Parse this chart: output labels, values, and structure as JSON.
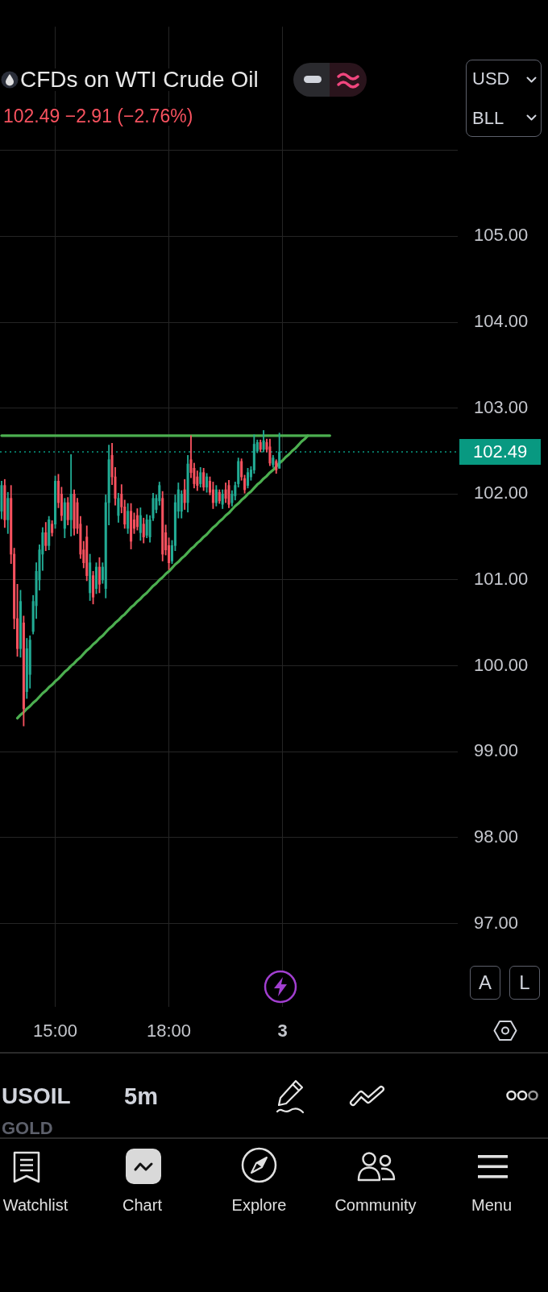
{
  "chart_data": {
    "type": "candlestick",
    "title": "CFDs on WTI Crude Oil",
    "subtitle": "102.49 −2.91 (−2.76%)",
    "annotations": [
      "USD",
      "BLL",
      "A",
      "L",
      "USOIL",
      "GOLD",
      "5m",
      "Watchlist",
      "Chart",
      "Explore",
      "Community",
      "Menu"
    ],
    "categories": [
      null,
      null,
      null,
      null,
      null,
      null,
      null,
      null,
      null,
      null,
      null,
      null,
      null,
      null,
      null,
      null,
      null,
      "15:00",
      null,
      null,
      null,
      null,
      null,
      null,
      null,
      null,
      null,
      null,
      null,
      null,
      null,
      null,
      null,
      null,
      null,
      null,
      null,
      null,
      null,
      null,
      null,
      null,
      null,
      null,
      null,
      null,
      null,
      null,
      null,
      null,
      null,
      null,
      null,
      "18:00",
      null,
      null,
      null,
      null,
      null,
      null,
      null,
      null,
      null,
      null,
      null,
      null,
      null,
      null,
      null,
      null,
      null,
      null,
      null,
      null,
      null,
      null,
      null,
      null,
      null,
      null,
      null,
      null,
      null,
      null,
      null,
      null,
      null,
      null,
      null,
      "3",
      null,
      null,
      null,
      null,
      null,
      null,
      null,
      null,
      null,
      null,
      null,
      null,
      null,
      null,
      null,
      null,
      null,
      null,
      null,
      null,
      null,
      null,
      null,
      null,
      null,
      null,
      null,
      null,
      null,
      null,
      null,
      null,
      null,
      null,
      null,
      null,
      null,
      null,
      null,
      null,
      null,
      null,
      null,
      null,
      null,
      null,
      null,
      null,
      null,
      null,
      null,
      null,
      null,
      null,
      null
    ],
    "ohlc": [
      [
        101.8,
        102.15,
        101.71,
        102.1
      ],
      [
        102.1,
        102.17,
        101.61,
        101.7
      ],
      [
        101.7,
        102.02,
        101.54,
        101.95
      ],
      [
        101.95,
        102.1,
        101.19,
        101.3
      ],
      [
        101.3,
        101.37,
        100.43,
        100.55
      ],
      [
        100.55,
        100.95,
        100.11,
        100.2
      ],
      [
        100.2,
        100.88,
        100.1,
        100.75
      ],
      [
        100.5,
        100.58,
        99.3,
        99.5
      ],
      [
        99.7,
        100.32,
        99.62,
        100.2
      ],
      [
        99.9,
        100.35,
        99.74,
        100.3
      ],
      [
        100.4,
        100.82,
        100.37,
        100.75
      ],
      [
        100.7,
        101.2,
        100.55,
        101.1
      ],
      [
        101.0,
        101.41,
        100.88,
        101.35
      ],
      [
        101.3,
        101.61,
        101.11,
        101.55
      ],
      [
        101.55,
        101.67,
        101.34,
        101.4
      ],
      [
        101.4,
        101.74,
        101.35,
        101.7
      ],
      [
        101.65,
        101.69,
        101.51,
        101.55
      ],
      [
        101.65,
        102.21,
        101.6,
        102.15
      ],
      [
        102.15,
        102.23,
        101.84,
        101.9
      ],
      [
        102.0,
        102.08,
        101.69,
        101.75
      ],
      [
        101.6,
        101.95,
        101.49,
        101.9
      ],
      [
        101.9,
        101.96,
        101.64,
        101.7
      ],
      [
        101.7,
        102.46,
        101.51,
        102.0
      ],
      [
        102.0,
        102.05,
        101.52,
        101.6
      ],
      [
        101.9,
        101.95,
        101.54,
        101.6
      ],
      [
        101.65,
        101.74,
        101.25,
        101.3
      ],
      [
        101.35,
        101.45,
        101.14,
        101.2
      ],
      [
        101.5,
        101.63,
        100.99,
        101.05
      ],
      [
        100.85,
        101.3,
        100.76,
        101.2
      ],
      [
        101.05,
        101.1,
        100.72,
        100.8
      ],
      [
        100.9,
        101.2,
        100.84,
        101.15
      ],
      [
        101.15,
        101.26,
        100.85,
        100.95
      ],
      [
        101.0,
        101.2,
        100.96,
        101.15
      ],
      [
        100.9,
        101.99,
        100.79,
        101.9
      ],
      [
        101.9,
        102.57,
        101.64,
        102.4
      ],
      [
        102.45,
        102.59,
        102.11,
        102.2
      ],
      [
        102.2,
        102.31,
        101.87,
        101.95
      ],
      [
        101.75,
        102.01,
        101.67,
        101.95
      ],
      [
        102.0,
        102.11,
        101.78,
        101.85
      ],
      [
        101.85,
        101.93,
        101.6,
        101.65
      ],
      [
        101.6,
        101.89,
        101.54,
        101.8
      ],
      [
        101.8,
        101.89,
        101.36,
        101.45
      ],
      [
        101.7,
        101.78,
        101.54,
        101.6
      ],
      [
        101.75,
        101.83,
        101.58,
        101.62
      ],
      [
        101.55,
        101.84,
        101.46,
        101.75
      ],
      [
        101.65,
        101.72,
        101.43,
        101.5
      ],
      [
        101.52,
        101.76,
        101.49,
        101.7
      ],
      [
        101.5,
        101.75,
        101.44,
        101.7
      ],
      [
        101.72,
        102.01,
        101.69,
        101.95
      ],
      [
        101.82,
        101.99,
        101.78,
        101.95
      ],
      [
        101.92,
        102.14,
        101.87,
        102.1
      ],
      [
        101.95,
        102.03,
        101.22,
        101.3
      ],
      [
        101.55,
        101.64,
        101.29,
        101.35
      ],
      [
        101.4,
        101.49,
        101.12,
        101.2
      ],
      [
        101.22,
        101.46,
        101.19,
        101.4
      ],
      [
        101.4,
        101.99,
        101.34,
        101.9
      ],
      [
        101.8,
        102.13,
        101.72,
        102.05
      ],
      [
        101.8,
        102.04,
        101.72,
        102.0
      ],
      [
        102.05,
        102.17,
        101.82,
        101.9
      ],
      [
        101.9,
        102.45,
        101.79,
        102.35
      ],
      [
        102.4,
        102.68,
        102.19,
        102.25
      ],
      [
        102.3,
        102.36,
        102.07,
        102.12
      ],
      [
        102.2,
        102.27,
        102.04,
        102.1
      ],
      [
        102.12,
        102.31,
        102.08,
        102.25
      ],
      [
        102.25,
        102.3,
        102.04,
        102.08
      ],
      [
        102.08,
        102.24,
        102.02,
        102.2
      ],
      [
        102.15,
        102.2,
        101.99,
        102.02
      ],
      [
        102.05,
        102.14,
        101.83,
        101.9
      ],
      [
        101.9,
        102.1,
        101.86,
        102.05
      ],
      [
        102.02,
        102.05,
        101.89,
        101.92
      ],
      [
        101.88,
        102.05,
        101.83,
        102.0
      ],
      [
        102.05,
        102.13,
        101.9,
        101.95
      ],
      [
        102.1,
        102.16,
        101.84,
        101.88
      ],
      [
        101.9,
        102.04,
        101.86,
        102.0
      ],
      [
        101.98,
        102.14,
        101.93,
        102.1
      ],
      [
        102.12,
        102.42,
        102.08,
        102.38
      ],
      [
        102.38,
        102.41,
        102.16,
        102.2
      ],
      [
        102.18,
        102.22,
        102.01,
        102.05
      ],
      [
        102.1,
        102.3,
        102.07,
        102.25
      ],
      [
        102.2,
        102.32,
        102.16,
        102.28
      ],
      [
        102.28,
        102.69,
        102.24,
        102.58
      ],
      [
        102.5,
        102.63,
        102.48,
        102.6
      ],
      [
        102.6,
        102.63,
        102.49,
        102.52
      ],
      [
        102.52,
        102.74,
        102.49,
        102.62
      ],
      [
        102.6,
        102.64,
        102.49,
        102.52
      ],
      [
        102.55,
        102.64,
        102.33,
        102.36
      ],
      [
        102.34,
        102.45,
        102.31,
        102.42
      ],
      [
        102.38,
        102.4,
        102.24,
        102.28
      ],
      [
        102.3,
        102.71,
        102.3,
        102.49
      ],
      null,
      null,
      null,
      null,
      null,
      null,
      null,
      null,
      null,
      null,
      null,
      null,
      null,
      null,
      null,
      null,
      null,
      null,
      null,
      null,
      null,
      null,
      null,
      null,
      null,
      null,
      null,
      null,
      null,
      null,
      null,
      null,
      null,
      null,
      null,
      null,
      null,
      null,
      null,
      null,
      null,
      null,
      null,
      null,
      null,
      null,
      null,
      null,
      null,
      null,
      null,
      null,
      null,
      null,
      null,
      null
    ],
    "colors": [
      "#22ab94",
      "#f7525f",
      "#22ab94",
      "#f7525f",
      "#f7525f",
      "#f7525f",
      "#22ab94",
      "#f7525f",
      "#22ab94",
      "#22ab94",
      "#22ab94",
      "#22ab94",
      "#22ab94",
      "#22ab94",
      "#f7525f",
      "#22ab94",
      "#f7525f",
      "#22ab94",
      "#f7525f",
      "#f7525f",
      "#22ab94",
      "#f7525f",
      "#22ab94",
      "#f7525f",
      "#f7525f",
      "#f7525f",
      "#f7525f",
      "#f7525f",
      "#22ab94",
      "#f7525f",
      "#22ab94",
      "#f7525f",
      "#22ab94",
      "#22ab94",
      "#22ab94",
      "#f7525f",
      "#f7525f",
      "#22ab94",
      "#f7525f",
      "#f7525f",
      "#22ab94",
      "#f7525f",
      "#f7525f",
      "#f7525f",
      "#22ab94",
      "#f7525f",
      "#22ab94",
      "#22ab94",
      "#22ab94",
      "#22ab94",
      "#22ab94",
      "#f7525f",
      "#f7525f",
      "#f7525f",
      "#22ab94",
      "#22ab94",
      "#22ab94",
      "#22ab94",
      "#f7525f",
      "#22ab94",
      "#f7525f",
      "#f7525f",
      "#f7525f",
      "#22ab94",
      "#f7525f",
      "#22ab94",
      "#f7525f",
      "#f7525f",
      "#22ab94",
      "#f7525f",
      "#22ab94",
      "#f7525f",
      "#f7525f",
      "#22ab94",
      "#22ab94",
      "#22ab94",
      "#f7525f",
      "#f7525f",
      "#22ab94",
      "#22ab94",
      "#22ab94",
      "#22ab94",
      "#f7525f",
      "#22ab94",
      "#f7525f",
      "#f7525f",
      "#22ab94",
      "#f7525f",
      "#22ab94",
      null,
      null,
      null,
      null,
      null,
      null,
      null,
      null,
      null,
      null,
      null,
      null,
      null,
      null,
      null,
      null,
      null,
      null,
      null,
      null,
      null,
      null,
      null,
      null,
      null,
      null,
      null,
      null,
      null,
      null,
      null,
      null,
      null,
      null,
      null,
      null,
      null,
      null,
      null,
      null,
      null,
      null,
      null,
      null,
      null,
      null,
      null,
      null,
      null,
      null,
      null,
      null,
      null,
      null,
      null,
      null
    ],
    "series": [
      {
        "type": "line",
        "color": "#4caf50",
        "values": [
          102.68,
          102.68,
          102.68,
          102.68,
          102.68,
          102.68,
          102.68,
          102.68,
          102.68,
          102.68,
          102.68,
          102.68,
          102.68,
          102.68,
          102.68,
          102.68,
          102.68,
          102.68,
          102.68,
          102.68,
          102.68,
          102.68,
          102.68,
          102.68,
          102.68,
          102.68,
          102.68,
          102.68,
          102.68,
          102.68,
          102.68,
          102.68,
          102.68,
          102.68,
          102.68,
          102.68,
          102.68,
          102.68,
          102.68,
          102.68,
          102.68,
          102.68,
          102.68,
          102.68,
          102.68,
          102.68,
          102.68,
          102.68,
          102.68,
          102.68,
          102.68,
          102.68,
          102.68,
          102.68,
          102.68,
          102.68,
          102.68,
          102.68,
          102.68,
          102.68,
          102.68,
          102.68,
          102.68,
          102.68,
          102.68,
          102.68,
          102.68,
          102.68,
          102.68,
          102.68,
          102.68,
          102.68,
          102.68,
          102.68,
          102.68,
          102.68,
          102.68,
          102.68,
          102.68,
          102.68,
          102.68,
          102.68,
          102.68,
          102.68,
          102.68,
          102.68,
          102.68,
          102.68,
          102.68,
          102.68,
          102.68,
          102.68,
          102.68,
          102.68,
          102.68,
          102.68,
          102.68,
          102.68,
          102.68,
          102.68,
          102.68,
          102.68,
          102.68,
          102.68,
          102.68,
          null,
          null,
          null,
          null,
          null,
          null,
          null,
          null,
          null,
          null,
          null,
          null,
          null,
          null,
          null,
          null,
          null,
          null,
          null,
          null,
          null,
          null,
          null,
          null,
          null,
          null,
          null,
          null,
          null,
          null,
          null,
          null,
          null,
          null,
          null,
          null,
          null,
          null,
          null,
          null
        ]
      },
      {
        "type": "line",
        "color": "#4caf50",
        "values": [
          null,
          null,
          null,
          null,
          null,
          99.39,
          99.43,
          99.46,
          99.5,
          99.53,
          99.57,
          99.6,
          99.64,
          99.68,
          99.71,
          99.75,
          99.78,
          99.82,
          99.85,
          99.89,
          99.93,
          99.96,
          100.0,
          100.03,
          100.07,
          100.1,
          100.14,
          100.18,
          100.21,
          100.25,
          100.28,
          100.32,
          100.35,
          100.39,
          100.43,
          100.46,
          100.5,
          100.53,
          100.57,
          100.6,
          100.64,
          100.68,
          100.71,
          100.75,
          100.78,
          100.82,
          100.85,
          100.89,
          100.93,
          100.96,
          101.0,
          101.03,
          101.07,
          101.1,
          101.14,
          101.18,
          101.21,
          101.25,
          101.28,
          101.32,
          101.36,
          101.39,
          101.43,
          101.46,
          101.5,
          101.53,
          101.57,
          101.61,
          101.64,
          101.68,
          101.71,
          101.75,
          101.78,
          101.82,
          101.86,
          101.89,
          101.93,
          101.96,
          102.0,
          102.03,
          102.07,
          102.11,
          102.14,
          102.18,
          102.21,
          102.25,
          102.28,
          102.32,
          102.36,
          102.39,
          102.43,
          102.46,
          102.5,
          102.53,
          102.57,
          102.61,
          102.64,
          102.68,
          null,
          null,
          null,
          null,
          null,
          null,
          null,
          null,
          null,
          null,
          null,
          null,
          null,
          null,
          null,
          null,
          null,
          null,
          null,
          null,
          null,
          null,
          null,
          null,
          null,
          null,
          null,
          null,
          null,
          null,
          null,
          null,
          null,
          null,
          null,
          null,
          null,
          null,
          null,
          null,
          null,
          null,
          null,
          null,
          null,
          null,
          null
        ]
      }
    ],
    "ylim": [
      96.03,
      107.44
    ],
    "yticks": [
      {
        "value": 97,
        "label": "97.00"
      },
      {
        "value": 98,
        "label": "98.00"
      },
      {
        "value": 99,
        "label": "99.00"
      },
      {
        "value": 100,
        "label": "100.00"
      },
      {
        "value": 101,
        "label": "101.00"
      },
      {
        "value": 102,
        "label": "102.00"
      },
      {
        "value": 103,
        "label": "103.00"
      },
      {
        "value": 104,
        "label": "104.00"
      },
      {
        "value": 105,
        "label": "105.00"
      },
      {
        "value": 106,
        "label": null
      }
    ],
    "grid": true,
    "ref_lines": [
      {
        "axis": "y",
        "value": 102.49,
        "label": "102.49",
        "color": "#089981",
        "line_style": "dotted"
      }
    ]
  }
}
